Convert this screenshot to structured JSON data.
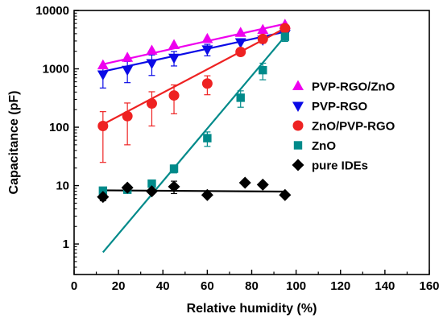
{
  "chart_data": {
    "type": "scatter",
    "xlabel": "Relative humidity (%)",
    "ylabel": "Capacitance (pF)",
    "xlim": [
      0,
      160
    ],
    "ylim": [
      0.3,
      10000
    ],
    "yscale": "log",
    "xticks": [
      0,
      20,
      40,
      60,
      80,
      100,
      120,
      140,
      160
    ],
    "yticks": [
      1,
      10,
      100,
      1000,
      10000
    ],
    "xtick_labels": [
      "0",
      "20",
      "40",
      "60",
      "80",
      "100",
      "120",
      "140",
      "160"
    ],
    "ytick_labels": [
      "1",
      "10",
      "100",
      "1000",
      "10000"
    ],
    "grid": false,
    "legend_position": "right",
    "series": [
      {
        "name": "PVP-RGO/ZnO",
        "color": "#ee00ee",
        "marker": "triangle-up",
        "points": [
          {
            "x": 13,
            "y": 1150,
            "err": 0
          },
          {
            "x": 24,
            "y": 1550,
            "err": 0
          },
          {
            "x": 35,
            "y": 2050,
            "err": 0
          },
          {
            "x": 45,
            "y": 2550,
            "err": 0
          },
          {
            "x": 60,
            "y": 3250,
            "err": 0
          },
          {
            "x": 75,
            "y": 4150,
            "err": 0
          },
          {
            "x": 85,
            "y": 4650,
            "err": 0
          },
          {
            "x": 95,
            "y": 5700,
            "err": 0
          }
        ],
        "fit": [
          [
            13,
            1200
          ],
          [
            95,
            5900
          ]
        ]
      },
      {
        "name": "PVP-RGO",
        "color": "#0a0ae6",
        "marker": "triangle-down",
        "points": [
          {
            "x": 13,
            "y": 800,
            "err": 330
          },
          {
            "x": 24,
            "y": 960,
            "err": 380
          },
          {
            "x": 35,
            "y": 1250,
            "err": 480
          },
          {
            "x": 45,
            "y": 1550,
            "err": 430
          },
          {
            "x": 60,
            "y": 2150,
            "err": 480
          },
          {
            "x": 75,
            "y": 2850,
            "err": 0
          },
          {
            "x": 85,
            "y": 3150,
            "err": 0
          },
          {
            "x": 95,
            "y": 3950,
            "err": 0
          }
        ],
        "fit": [
          [
            13,
            900
          ],
          [
            95,
            4300
          ]
        ]
      },
      {
        "name": "ZnO/PVP-RGO",
        "color": "#ee2222",
        "marker": "circle",
        "points": [
          {
            "x": 13,
            "y": 105,
            "err": 80
          },
          {
            "x": 24,
            "y": 155,
            "err": 105
          },
          {
            "x": 35,
            "y": 255,
            "err": 150
          },
          {
            "x": 45,
            "y": 350,
            "err": 180
          },
          {
            "x": 60,
            "y": 560,
            "err": 200
          },
          {
            "x": 75,
            "y": 1950,
            "err": 0
          },
          {
            "x": 85,
            "y": 3250,
            "err": 500
          },
          {
            "x": 95,
            "y": 4950,
            "err": 0
          }
        ],
        "fit": [
          [
            13,
            112
          ],
          [
            95,
            4950
          ]
        ]
      },
      {
        "name": "ZnO",
        "color": "#008a8a",
        "marker": "square",
        "points": [
          {
            "x": 13,
            "y": 8.2,
            "err": 0
          },
          {
            "x": 24,
            "y": 8.5,
            "err": 0
          },
          {
            "x": 35,
            "y": 10.8,
            "err": 0
          },
          {
            "x": 45,
            "y": 19.5,
            "err": 3
          },
          {
            "x": 60,
            "y": 65,
            "err": 18
          },
          {
            "x": 75,
            "y": 320,
            "err": 100
          },
          {
            "x": 85,
            "y": 950,
            "err": 300
          },
          {
            "x": 95,
            "y": 3550,
            "err": 600
          }
        ],
        "fit": [
          [
            13,
            0.72
          ],
          [
            95,
            3600
          ]
        ]
      },
      {
        "name": "pure IDEs",
        "color": "#000000",
        "marker": "diamond",
        "points": [
          {
            "x": 13,
            "y": 6.4,
            "err": 0.9
          },
          {
            "x": 24,
            "y": 9.2,
            "err": 1.0
          },
          {
            "x": 35,
            "y": 8.0,
            "err": 0
          },
          {
            "x": 45,
            "y": 9.6,
            "err": 2.3
          },
          {
            "x": 60,
            "y": 6.9,
            "err": 0.6
          },
          {
            "x": 77,
            "y": 11.2,
            "err": 0
          },
          {
            "x": 85,
            "y": 10.4,
            "err": 0
          },
          {
            "x": 95,
            "y": 6.9,
            "err": 0
          }
        ],
        "fit": [
          [
            13,
            8.3
          ],
          [
            95,
            7.9
          ]
        ]
      }
    ]
  }
}
